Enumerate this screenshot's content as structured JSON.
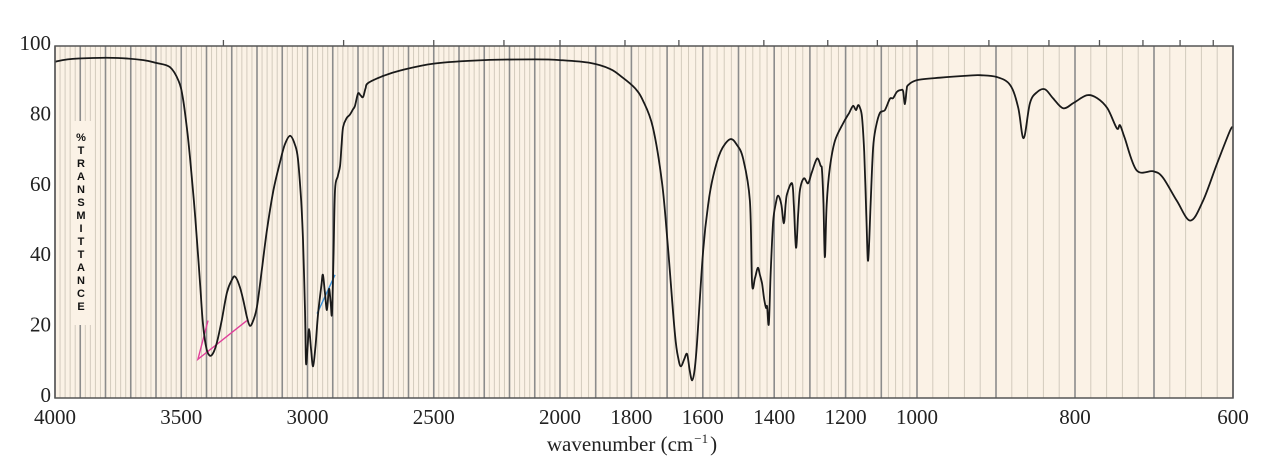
{
  "chart_data": {
    "type": "line",
    "title": "",
    "xlabel": "wavenumber (cm",
    "xlabel_sup": "−1",
    "xlabel_close": ")",
    "ylabel": "% TRANSMITTANCE",
    "xlim": [
      4000,
      600
    ],
    "ylim": [
      0,
      100
    ],
    "x_scale": "piecewise-linear (4000–2000, 2000–1000, 1000–600)",
    "x_ticks": [
      4000,
      3500,
      3000,
      2500,
      2000,
      1800,
      1600,
      1400,
      1200,
      1000,
      800,
      600
    ],
    "y_ticks": [
      0,
      20,
      40,
      60,
      80,
      100
    ],
    "grid": true,
    "top_axis_ticks_wavenumber": [
      3333,
      2857,
      2500,
      2222,
      2000,
      1818,
      1667,
      1429,
      1250,
      1111,
      1000,
      909,
      833,
      769,
      714,
      667,
      625
    ],
    "colors": {
      "line": "#1a1a1a",
      "background": "#fbf2e6",
      "grid_minor": "#d3cbbd",
      "grid_major": "#8c8c8c",
      "annotation_pink": "#e0409a",
      "annotation_blue": "#3a8fd6"
    },
    "series": [
      {
        "x": [
          4000,
          3950,
          3850,
          3750,
          3650,
          3600,
          3545,
          3510,
          3493,
          3475,
          3465,
          3450,
          3438,
          3425,
          3414,
          3400,
          3386,
          3372,
          3358,
          3340,
          3319,
          3300,
          3287,
          3270,
          3255,
          3240,
          3228,
          3215,
          3200,
          3180,
          3160,
          3135,
          3109,
          3090,
          3069,
          3050,
          3038,
          3025,
          3018,
          3010,
          3006,
          3000,
          2994,
          2986,
          2978,
          2968,
          2958,
          2945,
          2939,
          2931,
          2923,
          2915,
          2908,
          2903,
          2897,
          2891,
          2880,
          2871,
          2865,
          2859,
          2845,
          2832,
          2820,
          2812,
          2800,
          2790,
          2780,
          2770,
          2760,
          2700,
          2634,
          2500,
          2300,
          2100,
          2000,
          1916,
          1860,
          1824,
          1790,
          1768,
          1740,
          1714,
          1697,
          1678,
          1668,
          1661,
          1652,
          1644,
          1637,
          1630,
          1623,
          1616,
          1599,
          1585,
          1571,
          1550,
          1524,
          1505,
          1487,
          1468,
          1462,
          1454,
          1446,
          1440,
          1434,
          1428,
          1423,
          1420,
          1415,
          1410,
          1403,
          1396,
          1389,
          1380,
          1373,
          1368,
          1364,
          1350,
          1345,
          1339,
          1333,
          1328,
          1317,
          1305,
          1295,
          1280,
          1270,
          1266,
          1262,
          1258,
          1253,
          1244,
          1230,
          1207,
          1190,
          1179,
          1171,
          1165,
          1160,
          1154,
          1148,
          1142,
          1137,
          1130,
          1123,
          1115,
          1104,
          1090,
          1076,
          1067,
          1056,
          1045,
          1039,
          1034,
          1029,
          1025,
          1000,
          971,
          935,
          920,
          899,
          882,
          872,
          865,
          857,
          848,
          838,
          828,
          815,
          802,
          785,
          772,
          759,
          747,
          743,
          737,
          722,
          701,
          689,
          671,
          654,
          638,
          620,
          604,
          600
        ],
        "y": [
          95.5,
          96.2,
          96.6,
          96.6,
          96,
          95.2,
          94,
          90,
          85,
          75,
          68,
          56,
          45,
          32,
          21,
          14,
          12,
          13,
          16,
          22,
          30,
          33.5,
          34.5,
          32,
          28,
          23,
          20.5,
          22,
          26,
          37,
          48,
          59,
          67,
          72,
          74.5,
          72,
          68,
          56,
          45,
          25,
          10,
          14,
          19.6,
          14,
          9,
          15,
          24,
          32,
          35,
          30,
          25,
          31,
          27,
          24,
          40,
          59,
          63,
          66,
          72,
          77,
          79.5,
          80.5,
          82,
          83,
          86.5,
          86,
          85.5,
          88,
          89.5,
          91.5,
          93,
          95,
          96,
          96.2,
          96,
          95.2,
          93.5,
          91,
          88,
          84.6,
          77,
          61,
          42,
          18,
          11,
          9,
          11,
          12.5,
          8,
          5,
          8,
          16,
          42,
          55,
          63,
          70,
          73.5,
          72,
          68,
          56,
          32.5,
          34,
          37,
          35,
          32.5,
          28,
          25.6,
          26,
          21,
          35,
          50,
          55,
          57.5,
          55,
          49.6,
          55,
          58,
          61,
          55,
          42.7,
          52,
          59,
          62.4,
          61,
          64,
          68,
          66,
          64.7,
          55,
          40,
          55,
          65.5,
          73,
          78,
          81,
          83,
          81.8,
          83.2,
          82.5,
          79.8,
          70,
          52,
          39,
          55,
          71,
          77,
          81,
          81.8,
          85,
          85.2,
          87,
          87.5,
          87.2,
          83.5,
          87.5,
          88.9,
          90.3,
          91,
          91.6,
          91.7,
          91.2,
          88.9,
          82.6,
          73.8,
          83.8,
          86.9,
          87.7,
          85.2,
          82.3,
          83.8,
          86,
          85.2,
          82.3,
          76.6,
          77.5,
          73.8,
          64.7,
          64.4,
          62.7,
          56,
          50.4,
          56,
          66.7,
          75.8,
          77
        ]
      }
    ],
    "annotations": [
      {
        "color": "pink",
        "points": [
          [
            3394,
            22
          ],
          [
            3434,
            11
          ],
          [
            3240,
            22
          ]
        ]
      },
      {
        "color": "blue",
        "points": [
          [
            2962,
            24
          ],
          [
            2891,
            35
          ]
        ]
      }
    ]
  }
}
